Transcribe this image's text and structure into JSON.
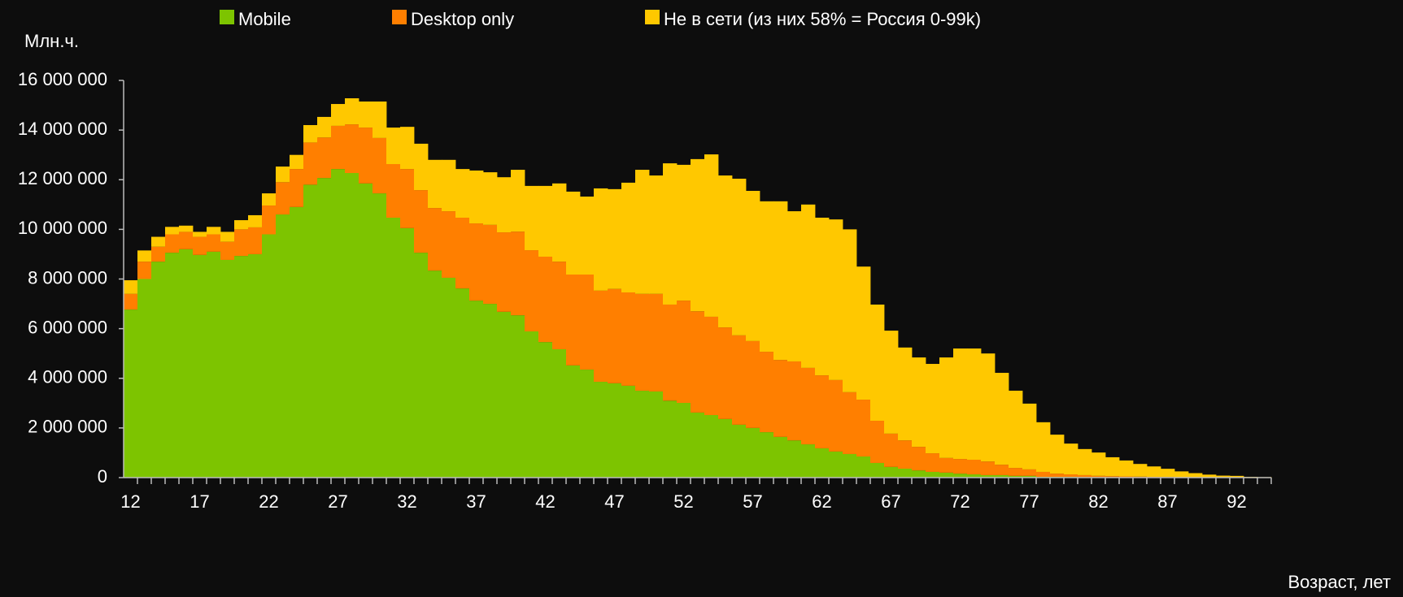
{
  "chart_data": {
    "type": "bar",
    "stacked": true,
    "y_label": "Млн.ч.",
    "x_label": "Возраст, лет",
    "categories": [
      "12",
      null,
      null,
      null,
      null,
      "17",
      null,
      null,
      null,
      null,
      "22",
      null,
      null,
      null,
      null,
      "27",
      null,
      null,
      null,
      null,
      "32",
      null,
      null,
      null,
      null,
      "37",
      null,
      null,
      null,
      null,
      "42",
      null,
      null,
      null,
      null,
      "47",
      null,
      null,
      null,
      null,
      "52",
      null,
      null,
      null,
      null,
      "57",
      null,
      null,
      null,
      null,
      "62",
      null,
      null,
      null,
      null,
      "67",
      null,
      null,
      null,
      null,
      "72",
      null,
      null,
      null,
      null,
      "77",
      null,
      null,
      null,
      null,
      "82",
      null,
      null,
      null,
      null,
      "87",
      null,
      null,
      null,
      null,
      "92",
      null,
      null
    ],
    "series": [
      {
        "name": "Mobile",
        "color": "#7dc400",
        "values": [
          6770000,
          8000000,
          8700000,
          9060000,
          9200000,
          8970000,
          9100000,
          8770000,
          8930000,
          9000000,
          9800000,
          10600000,
          10900000,
          11800000,
          12070000,
          12430000,
          12270000,
          11850000,
          11450000,
          10470000,
          10050000,
          9060000,
          8340000,
          8050000,
          7620000,
          7130000,
          7000000,
          6680000,
          6540000,
          5890000,
          5460000,
          5170000,
          4520000,
          4350000,
          3860000,
          3800000,
          3700000,
          3500000,
          3470000,
          3100000,
          3010000,
          2620000,
          2520000,
          2360000,
          2130000,
          2000000,
          1830000,
          1640000,
          1500000,
          1340000,
          1180000,
          1050000,
          950000,
          850000,
          590000,
          430000,
          360000,
          290000,
          230000,
          200000,
          160000,
          130000,
          100000,
          100000,
          70000,
          70000,
          30000,
          30000,
          30000,
          20000,
          20000,
          10000,
          10000,
          10000,
          5000,
          5000,
          0,
          0,
          0,
          0,
          0,
          0,
          0
        ]
      },
      {
        "name": "Desktop only",
        "color": "#ff7f00",
        "values": [
          630000,
          700000,
          600000,
          740000,
          700000,
          730000,
          700000,
          730000,
          1070000,
          1080000,
          1160000,
          1300000,
          1530000,
          1700000,
          1630000,
          1740000,
          1960000,
          2250000,
          2230000,
          2160000,
          2380000,
          2520000,
          2520000,
          2680000,
          2850000,
          3110000,
          3180000,
          3200000,
          3370000,
          3270000,
          3440000,
          3530000,
          3660000,
          3830000,
          3670000,
          3800000,
          3760000,
          3900000,
          3930000,
          3870000,
          4120000,
          4080000,
          3960000,
          3690000,
          3600000,
          3500000,
          3240000,
          3100000,
          3180000,
          3080000,
          2940000,
          2880000,
          2490000,
          2290000,
          1700000,
          1340000,
          1140000,
          950000,
          750000,
          590000,
          590000,
          590000,
          550000,
          420000,
          320000,
          260000,
          200000,
          130000,
          100000,
          80000,
          50000,
          50000,
          40000,
          30000,
          25000,
          20000,
          15000,
          10000,
          10000,
          5000,
          5000,
          0,
          0
        ]
      },
      {
        "name": "Не в сети (из них 58% = Россия 0-99k)",
        "color": "#ffc800",
        "values": [
          550000,
          450000,
          400000,
          300000,
          250000,
          200000,
          300000,
          400000,
          370000,
          490000,
          490000,
          630000,
          570000,
          700000,
          830000,
          880000,
          1050000,
          1050000,
          1470000,
          1470000,
          1700000,
          1870000,
          1940000,
          2070000,
          1960000,
          2130000,
          2120000,
          2220000,
          2490000,
          2590000,
          2850000,
          3150000,
          3340000,
          3140000,
          4120000,
          4020000,
          4420000,
          5000000,
          4770000,
          5690000,
          5470000,
          6130000,
          6540000,
          6120000,
          6310000,
          6050000,
          6060000,
          6390000,
          6050000,
          6580000,
          6350000,
          6470000,
          6560000,
          5360000,
          4680000,
          4150000,
          3740000,
          3600000,
          3600000,
          4050000,
          4450000,
          4480000,
          4350000,
          3700000,
          3110000,
          2650000,
          2000000,
          1570000,
          1240000,
          1050000,
          940000,
          760000,
          640000,
          510000,
          420000,
          330000,
          235000,
          170000,
          110000,
          75000,
          65000,
          30000,
          20000
        ]
      }
    ],
    "ylim": [
      0,
      16000000
    ],
    "yticks": [
      0,
      {
        "value": 2000000,
        "label": "2 000 000"
      },
      {
        "value": 4000000,
        "label": "4 000 000"
      },
      {
        "value": 6000000,
        "label": "6 000 000"
      },
      {
        "value": 8000000,
        "label": "8 000 000"
      },
      {
        "value": 10000000,
        "label": "10 000 000"
      },
      {
        "value": 12000000,
        "label": "12 000 000"
      },
      {
        "value": 14000000,
        "label": "14 000 000"
      },
      {
        "value": 16000000,
        "label": "16 000 000"
      }
    ],
    "grid": false,
    "legend": "top"
  }
}
